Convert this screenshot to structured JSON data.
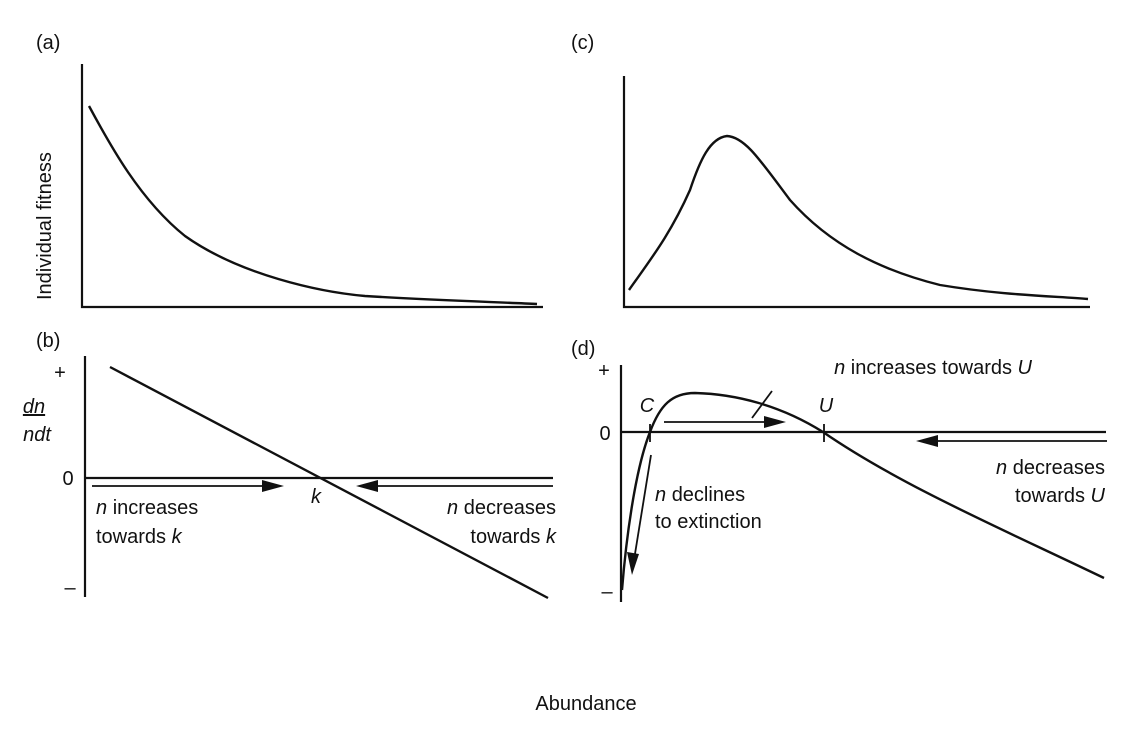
{
  "xlabel": "Abundance",
  "panels": {
    "a": {
      "letter": "(a)",
      "ylabel": "Individual fitness"
    },
    "c": {
      "letter": "(c)"
    },
    "b": {
      "letter": "(b)",
      "plus": "+",
      "zero": "0",
      "minus": "–",
      "ylabel_top": "dn",
      "ylabel_bottom": "ndt",
      "k_label": "k",
      "inc_n": "n",
      "inc_rest": " increases",
      "dec_n": "n",
      "dec_rest": " decreases",
      "towards": "towards "
    },
    "d": {
      "letter": "(d)",
      "plus": "+",
      "zero": "0",
      "minus": "–",
      "c_label": "C",
      "u_label": "U",
      "inc_n": "n",
      "inc_rest": " increases towards ",
      "dec_n": "n",
      "dec_rest": " decreases",
      "towards": "towards ",
      "decl_n": "n",
      "decl_rest": " declines",
      "decl_line2": "to extinction"
    }
  },
  "chart_data": [
    {
      "type": "line",
      "panel": "(a)",
      "ylabel": "Individual fitness",
      "xlabel": "Abundance",
      "series": [
        {
          "x": [
            0,
            1,
            2,
            3,
            4,
            5,
            6,
            7,
            8
          ],
          "y": [
            1.0,
            0.72,
            0.5,
            0.33,
            0.22,
            0.15,
            0.1,
            0.07,
            0.05
          ]
        }
      ]
    },
    {
      "type": "line",
      "panel": "(c)",
      "xlabel": "Abundance",
      "series": [
        {
          "x": [
            0,
            1,
            2,
            3,
            4,
            5,
            6,
            7,
            8
          ],
          "y": [
            0.08,
            0.5,
            0.95,
            0.7,
            0.4,
            0.22,
            0.13,
            0.08,
            0.05
          ]
        }
      ]
    },
    {
      "type": "line",
      "panel": "(b)",
      "ylabel": "dn/ndt",
      "yticks": [
        "+",
        "0",
        "–"
      ],
      "xlabel": "Abundance",
      "annotations": [
        "k",
        "n increases towards k",
        "n decreases towards k"
      ],
      "series": [
        {
          "x": [
            0,
            8
          ],
          "y": [
            1.0,
            -1.0
          ]
        }
      ]
    },
    {
      "type": "line",
      "panel": "(d)",
      "yticks": [
        "+",
        "0",
        "–"
      ],
      "xlabel": "Abundance",
      "annotations": [
        "C",
        "U",
        "n increases towards U",
        "n decreases towards U",
        "n declines to extinction"
      ],
      "series": [
        {
          "x": [
            0,
            0.3,
            1,
            2.5,
            4,
            6,
            8
          ],
          "y": [
            -1.0,
            0.0,
            0.45,
            0.25,
            0.0,
            -0.6,
            -1.0
          ]
        }
      ]
    }
  ]
}
